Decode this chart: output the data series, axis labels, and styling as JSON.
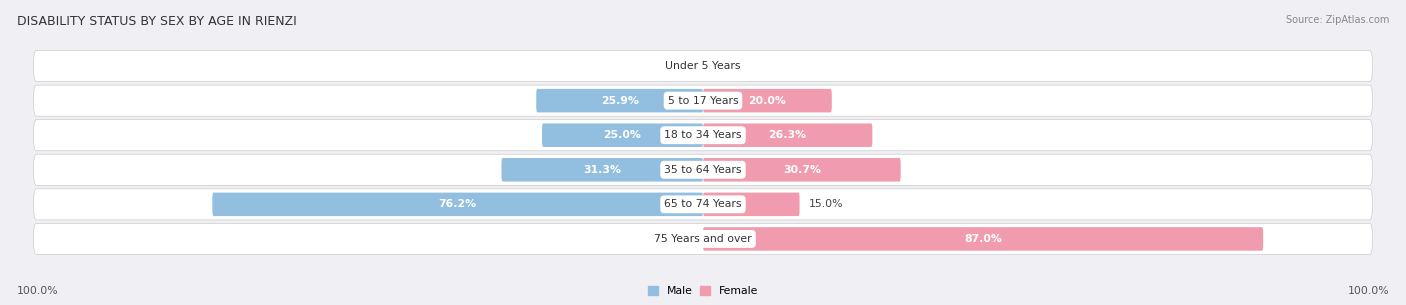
{
  "title": "DISABILITY STATUS BY SEX BY AGE IN RIENZI",
  "source": "Source: ZipAtlas.com",
  "categories": [
    "Under 5 Years",
    "5 to 17 Years",
    "18 to 34 Years",
    "35 to 64 Years",
    "65 to 74 Years",
    "75 Years and over"
  ],
  "male_values": [
    0.0,
    25.9,
    25.0,
    31.3,
    76.2,
    0.0
  ],
  "female_values": [
    0.0,
    20.0,
    26.3,
    30.7,
    15.0,
    87.0
  ],
  "male_color": "#92bfdf",
  "female_color": "#f09bae",
  "male_label": "Male",
  "female_label": "Female",
  "row_bg_color": "#e8e8ec",
  "title_fontsize": 9.0,
  "label_fontsize": 7.8,
  "axis_label_fontsize": 7.8,
  "background_color": "#f0f0f4"
}
